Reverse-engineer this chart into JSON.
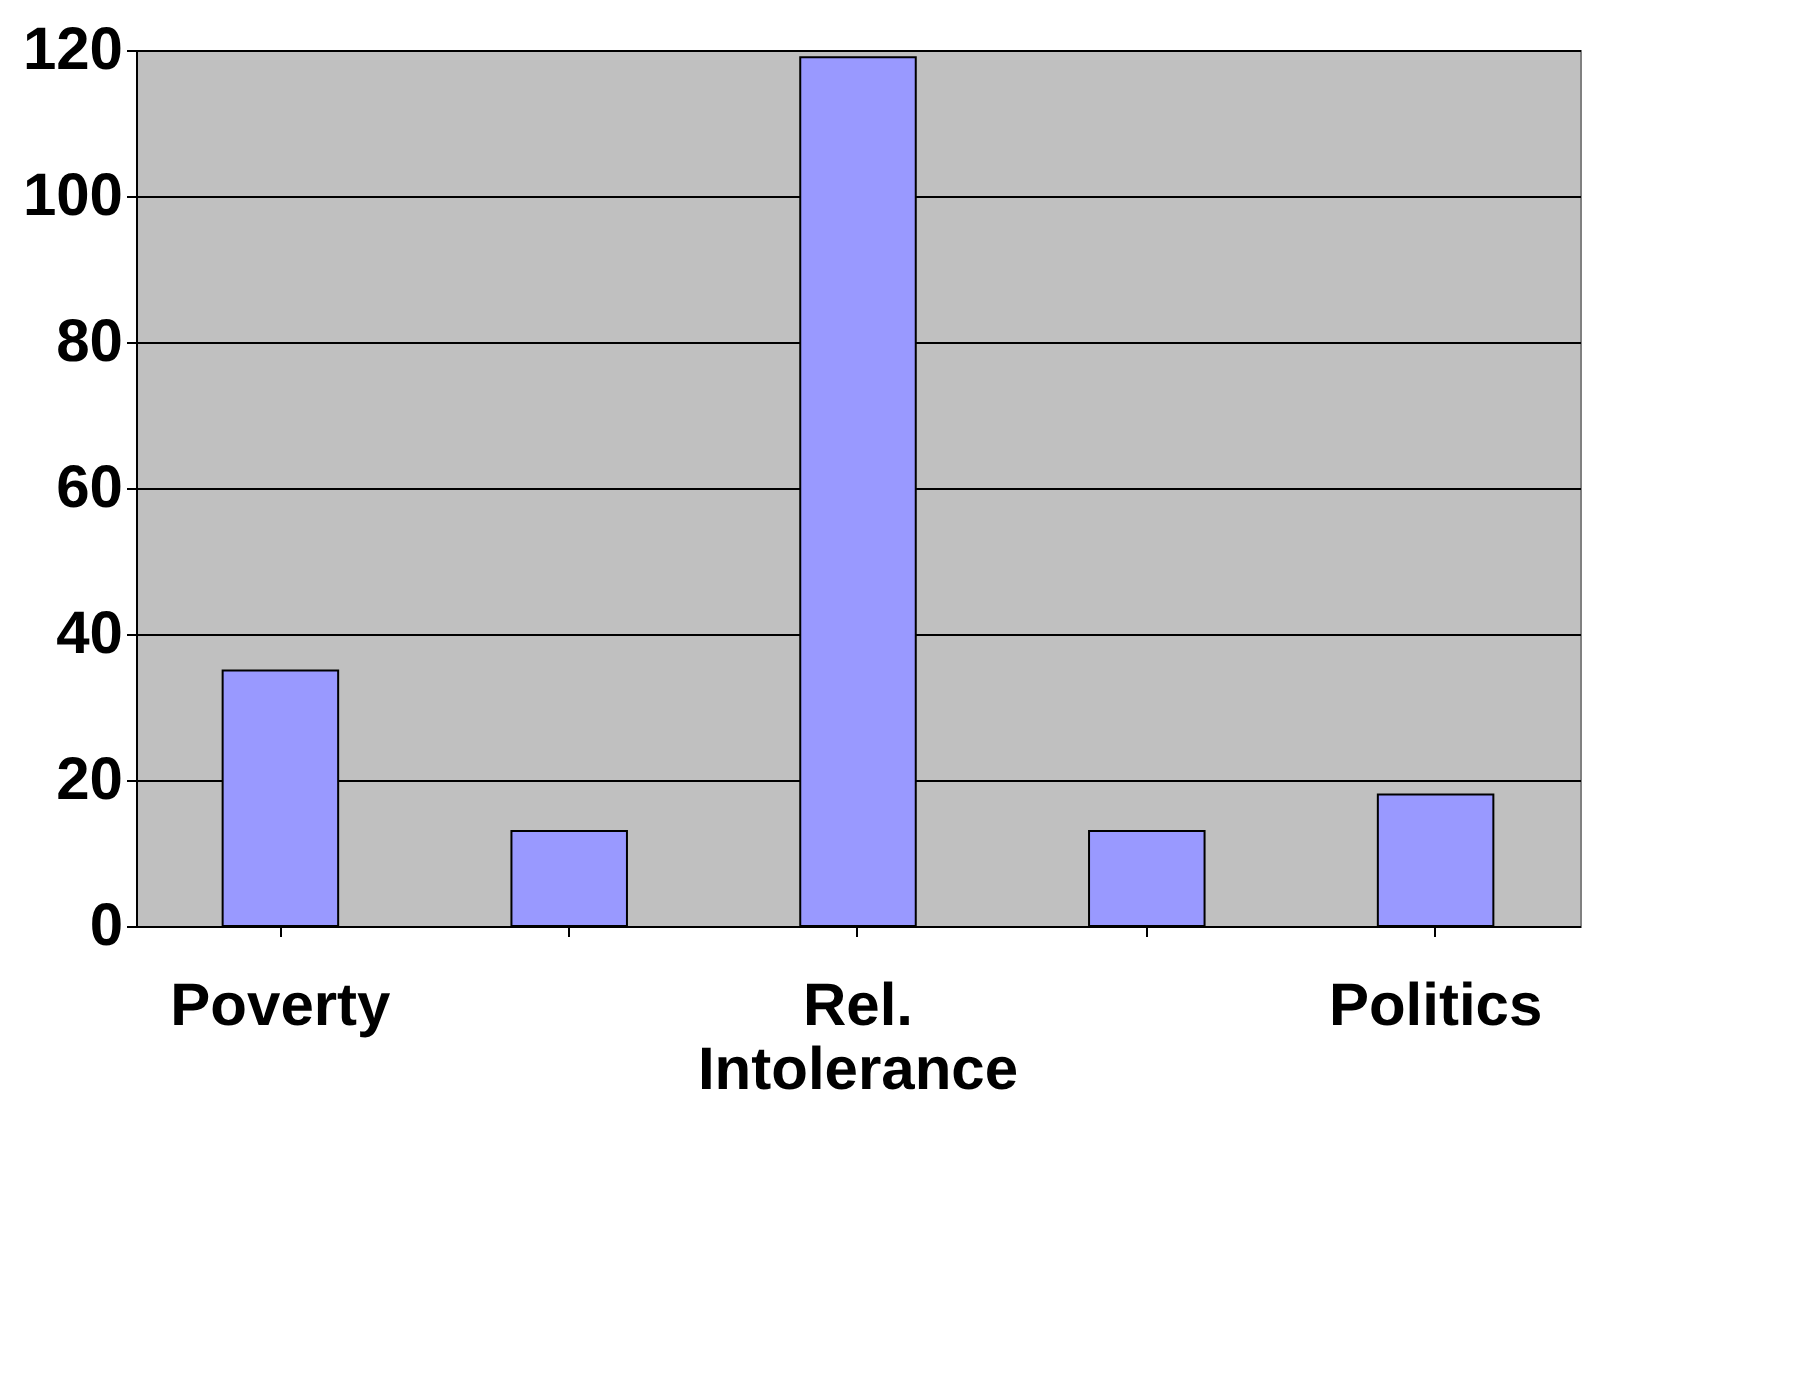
{
  "chart_data": {
    "type": "bar",
    "categories": [
      "Poverty",
      null,
      "Rel. Intolerance",
      null,
      "Politics"
    ],
    "values": [
      35,
      13,
      119,
      13,
      18
    ],
    "color": "#9999ff",
    "ylim": [
      0,
      120
    ],
    "yticks": [
      0,
      20,
      40,
      60,
      80,
      100,
      120
    ],
    "grid": "y"
  }
}
